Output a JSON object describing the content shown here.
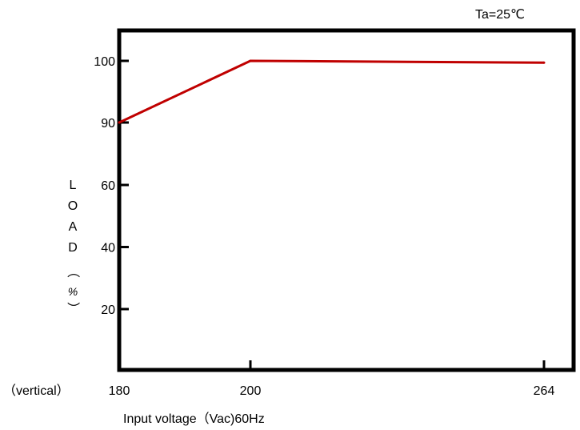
{
  "chart_data": {
    "type": "line",
    "title": "",
    "annotation": "Ta=25℃",
    "xlabel": "Input voltage（Vac)60Hz",
    "ylabel_chars": [
      "L",
      "O",
      "A",
      "D",
      "（",
      "%",
      "）"
    ],
    "corner_label": "（vertical）",
    "x_ticks": [
      180,
      200,
      264
    ],
    "y_ticks": [
      20,
      40,
      60,
      90,
      100
    ],
    "y_scale": "piecewise: 0-60 linear, 60-90 compressed, 90-100 linear",
    "ylim": [
      0,
      110
    ],
    "grid": false,
    "series": [
      {
        "x": [
          180,
          200,
          264
        ],
        "y": [
          90,
          100,
          99.7
        ],
        "color": "#c00000"
      }
    ]
  }
}
